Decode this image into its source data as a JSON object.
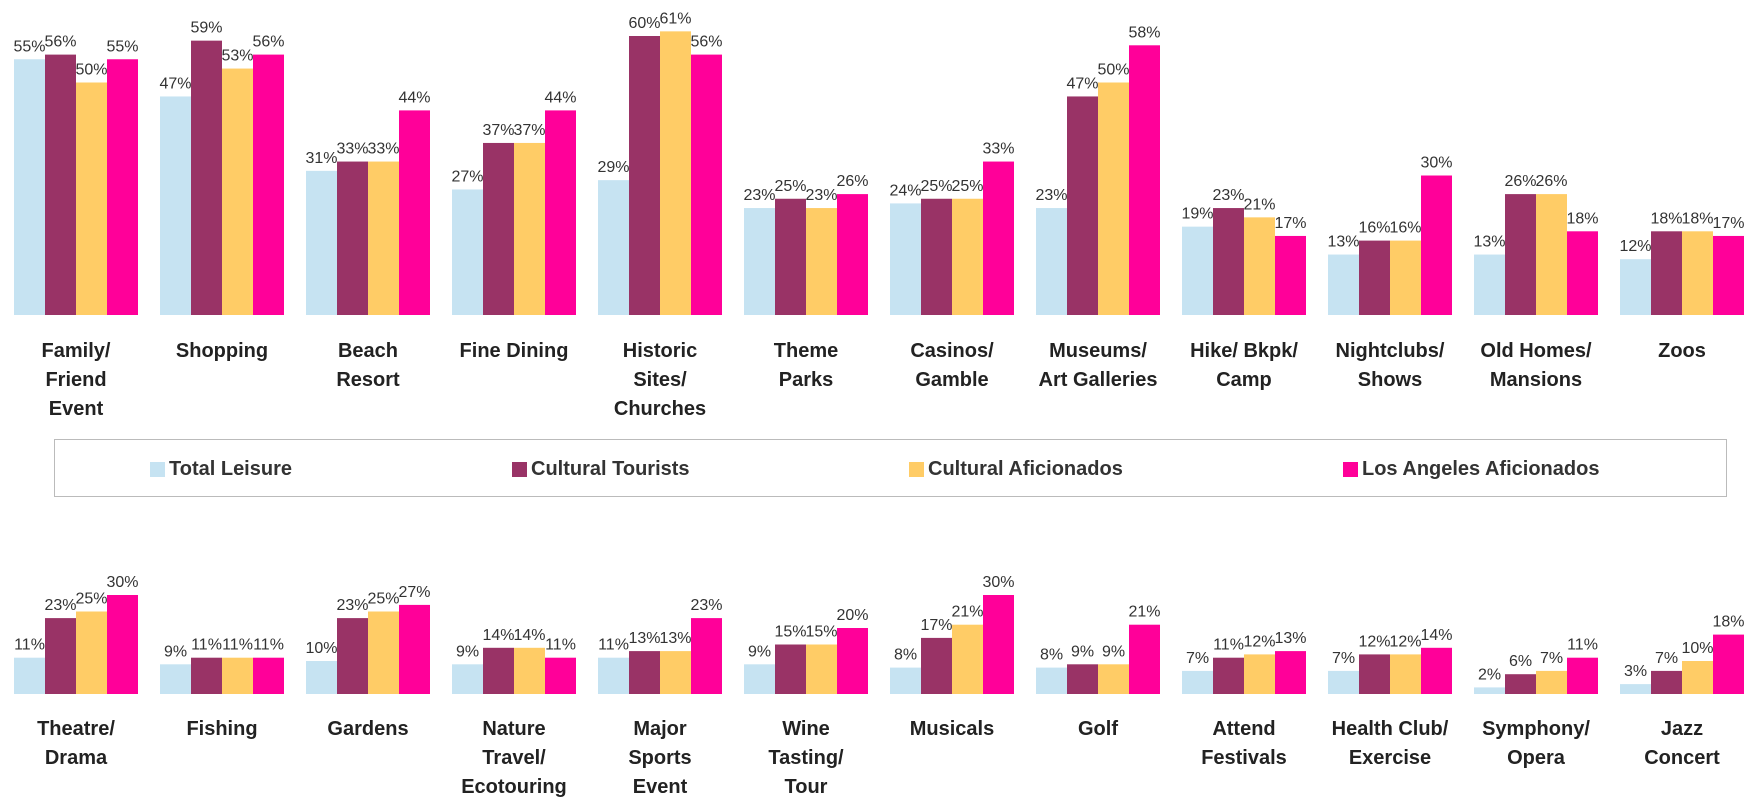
{
  "chart_data": [
    {
      "type": "bar",
      "categories": [
        "Family/\nFriend\nEvent",
        "Shopping",
        "Beach\nResort",
        "Fine Dining",
        "Historic\nSites/\nChurches",
        "Theme\nParks",
        "Casinos/\nGamble",
        "Museums/\nArt Galleries",
        "Hike/ Bkpk/\nCamp",
        "Nightclubs/\nShows",
        "Old Homes/\nMansions",
        "Zoos"
      ],
      "series": [
        {
          "name": "Total Leisure",
          "color": "#c6e3f2",
          "values": [
            55,
            47,
            31,
            27,
            29,
            23,
            24,
            23,
            19,
            13,
            13,
            12
          ],
          "value_labels": [
            "55%",
            "47%",
            "31%",
            "27%",
            "29%",
            "23%",
            "24%",
            "23%",
            "19%",
            "13%",
            "13%",
            "12%"
          ]
        },
        {
          "name": "Cultural Tourists",
          "color": "#993366",
          "values": [
            56,
            59,
            33,
            37,
            60,
            25,
            25,
            47,
            23,
            16,
            26,
            18
          ],
          "value_labels": [
            "56%",
            "59%",
            "33%",
            "37%",
            "60%",
            "25%",
            "25%",
            "47%",
            "23%",
            "16%",
            "26%",
            "18%"
          ]
        },
        {
          "name": "Cultural Aficionados",
          "color": "#ffcc66",
          "values": [
            50,
            53,
            33,
            37,
            61,
            23,
            25,
            50,
            21,
            16,
            26,
            18
          ],
          "value_labels": [
            "50%",
            "53%",
            "33%",
            "37%",
            "61%",
            "23%",
            "25%",
            "50%",
            "21%",
            "16%",
            "26%",
            "18%"
          ]
        },
        {
          "name": "Los Angeles Aficionados",
          "color": "#ff0099",
          "values": [
            55,
            56,
            44,
            44,
            56,
            26,
            33,
            58,
            17,
            30,
            18,
            17
          ],
          "value_labels": [
            "55%",
            "56%",
            "44%",
            "44%",
            "56%",
            "26%",
            "33%",
            "58%",
            "17%",
            "30%",
            "18%",
            "17%"
          ]
        }
      ]
    },
    {
      "type": "bar",
      "categories": [
        "Theatre/\nDrama",
        "Fishing",
        "Gardens",
        "Nature\nTravel/\nEcotouring",
        "Major\nSports\nEvent",
        "Wine\nTasting/\nTour",
        "Musicals",
        "Golf",
        "Attend\nFestivals",
        "Health Club/\nExercise",
        "Symphony/\nOpera",
        "Jazz\nConcert"
      ],
      "series": [
        {
          "values": [
            11,
            9,
            10,
            9,
            11,
            9,
            8,
            8,
            7,
            7,
            2,
            3
          ],
          "value_labels": [
            "11%",
            "9%",
            "10%",
            "9%",
            "11%",
            "9%",
            "8%",
            "8%",
            "7%",
            "7%",
            "2%",
            "3%"
          ]
        },
        {
          "values": [
            23,
            11,
            23,
            14,
            13,
            15,
            17,
            9,
            11,
            12,
            6,
            7
          ],
          "value_labels": [
            "23%",
            "11%",
            "23%",
            "14%",
            "13%",
            "15%",
            "17%",
            "9%",
            "11%",
            "12%",
            "6%",
            "7%"
          ]
        },
        {
          "values": [
            25,
            11,
            25,
            14,
            13,
            15,
            21,
            9,
            12,
            12,
            7,
            10
          ],
          "value_labels": [
            "25%",
            "11%",
            "25%",
            "14%",
            "13%",
            "15%",
            "21%",
            "9%",
            "12%",
            "12%",
            "7%",
            "10%"
          ]
        },
        {
          "values": [
            30,
            11,
            27,
            11,
            23,
            20,
            30,
            21,
            13,
            14,
            11,
            18
          ],
          "value_labels": [
            "30%",
            "11%",
            "27%",
            "11%",
            "23%",
            "20%",
            "30%",
            "21%",
            "13%",
            "14%",
            "11%",
            "18%"
          ]
        }
      ]
    }
  ]
}
